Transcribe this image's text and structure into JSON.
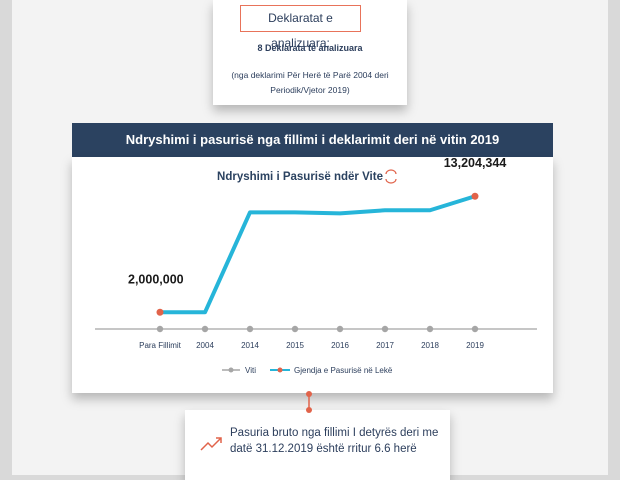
{
  "header": {
    "title": "Deklaratat e analizuara:",
    "count": "8 Deklarata të analizuara",
    "note": "(nga deklarimi Për Herë të Parë 2004 deri Periodik/Vjetor 2019)"
  },
  "chart_data": {
    "type": "line",
    "title": "Ndryshimi i pasurisë nga fillimi i deklarimit deri në vitin 2019",
    "subtitle": "Ndryshimi i Pasurisë ndër Vite",
    "categories": [
      "Para Fillimit",
      "2004",
      "2014",
      "2015",
      "2016",
      "2017",
      "2018",
      "2019"
    ],
    "x_legend": "Viti",
    "x_legend_color": "#a6a6a6",
    "series": [
      {
        "name": "Gjendja e Pasurisë në Lekë",
        "color": "#26b5d9",
        "marker_color": "#e1634a",
        "values": [
          2000000,
          2000000,
          11650000,
          11650000,
          11550000,
          11850000,
          11850000,
          13204344
        ],
        "value_labels": [
          "2,000,000",
          null,
          null,
          null,
          null,
          null,
          null,
          "13,204,344"
        ]
      }
    ],
    "ylim": [
      0,
      14000000
    ]
  },
  "footer": {
    "text": "Pasuria bruto nga fillimi I detyrës deri me datë 31.12.2019 është rritur 6.6 herë"
  }
}
